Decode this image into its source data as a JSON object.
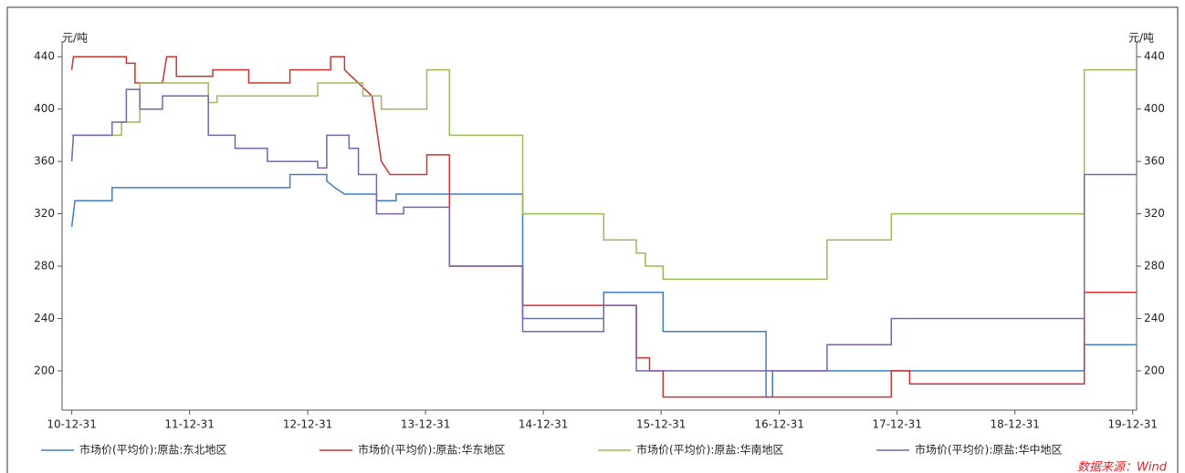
{
  "chart_data": {
    "type": "line",
    "y_label": "元/吨",
    "y2_label": "元/吨",
    "source": "数据来源：Wind",
    "xlim": [
      "10-12-01",
      "20-01-12"
    ],
    "xticks": [
      "10-12-31",
      "11-12-31",
      "12-12-31",
      "13-12-31",
      "14-12-31",
      "15-12-31",
      "16-12-31",
      "17-12-31",
      "18-12-31",
      "19-12-31"
    ],
    "ylim": [
      170,
      452
    ],
    "yticks": [
      200,
      240,
      280,
      320,
      360,
      400,
      440
    ],
    "series": [
      {
        "name": "市场价(平均价):原盐:东北地区",
        "color": "#3f7cc6",
        "x": [
          "10-12-31",
          "11-01-10",
          "11-05-05",
          "11-05-05",
          "12-11-06",
          "12-11-06",
          "13-02-28",
          "13-02-28",
          "13-03-25",
          "13-04-24",
          "13-08-01",
          "13-08-01",
          "13-10-01",
          "13-10-01",
          "14-10-28",
          "14-10-28",
          "15-07-06",
          "15-07-06",
          "16-01-06",
          "16-01-06",
          "16-11-20",
          "16-11-20",
          "16-12-10",
          "16-12-10",
          "19-08-03",
          "19-08-03",
          "20-01-12"
        ],
        "values": [
          310,
          330,
          330,
          340,
          340,
          350,
          350,
          345,
          340,
          335,
          335,
          330,
          330,
          335,
          335,
          240,
          240,
          260,
          260,
          230,
          230,
          180,
          180,
          200,
          200,
          220,
          220
        ]
      },
      {
        "name": "市场价(平均价):原盐:华东地区",
        "color": "#cc3431",
        "x": [
          "10-12-31",
          "11-01-05",
          "11-06-18",
          "11-06-18",
          "11-07-15",
          "11-07-15",
          "11-10-08",
          "11-10-21",
          "11-11-20",
          "11-11-20",
          "12-03-12",
          "12-03-12",
          "12-07-01",
          "12-07-01",
          "12-11-06",
          "12-11-06",
          "13-03-12",
          "13-03-12",
          "13-04-24",
          "13-04-24",
          "13-07-18",
          "13-08-16",
          "13-09-12",
          "13-09-12",
          "14-01-04",
          "14-01-04",
          "14-03-15",
          "14-03-15",
          "14-10-28",
          "14-10-28",
          "15-10-15",
          "15-10-15",
          "15-11-25",
          "15-11-25",
          "16-01-06",
          "16-01-06",
          "17-12-13",
          "17-12-13",
          "18-02-08",
          "18-02-08",
          "19-08-03",
          "19-08-03",
          "20-01-12"
        ],
        "values": [
          430,
          440,
          440,
          435,
          435,
          420,
          420,
          440,
          440,
          425,
          425,
          430,
          430,
          420,
          420,
          430,
          430,
          440,
          440,
          430,
          410,
          360,
          350,
          350,
          350,
          365,
          365,
          280,
          280,
          250,
          250,
          210,
          210,
          200,
          200,
          180,
          180,
          200,
          200,
          190,
          190,
          260,
          260
        ]
      },
      {
        "name": "市场价(平均价):原盐:华南地区",
        "color": "#9bbb59",
        "x": [
          "10-12-31",
          "11-06-03",
          "11-06-03",
          "11-07-30",
          "11-07-30",
          "12-02-27",
          "12-02-27",
          "12-03-25",
          "12-03-25",
          "13-01-31",
          "13-01-31",
          "13-06-20",
          "13-06-20",
          "13-08-16",
          "13-08-16",
          "14-01-04",
          "14-01-04",
          "14-03-15",
          "14-03-15",
          "14-10-28",
          "14-10-28",
          "15-07-06",
          "15-07-06",
          "15-10-15",
          "15-10-15",
          "15-11-12",
          "15-11-12",
          "16-01-06",
          "16-01-06",
          "17-05-28",
          "17-05-28",
          "17-12-13",
          "17-12-13",
          "19-08-03",
          "19-08-03",
          "20-01-12"
        ],
        "values": [
          380,
          380,
          390,
          390,
          420,
          420,
          405,
          405,
          410,
          410,
          420,
          420,
          410,
          410,
          400,
          400,
          430,
          430,
          380,
          380,
          320,
          320,
          300,
          300,
          290,
          290,
          280,
          280,
          270,
          270,
          300,
          300,
          320,
          320,
          430,
          430
        ]
      },
      {
        "name": "市场价(平均价):原盐:华中地区",
        "color": "#7b62aa",
        "x": [
          "10-12-31",
          "11-01-05",
          "11-05-05",
          "11-05-05",
          "11-06-18",
          "11-06-18",
          "11-07-30",
          "11-07-30",
          "11-10-08",
          "11-10-08",
          "12-02-27",
          "12-02-27",
          "12-05-20",
          "12-05-20",
          "12-08-28",
          "12-08-28",
          "13-01-31",
          "13-01-31",
          "13-02-28",
          "13-02-28",
          "13-05-08",
          "13-05-08",
          "13-06-06",
          "13-06-06",
          "13-08-01",
          "13-08-01",
          "13-10-24",
          "13-10-24",
          "14-03-15",
          "14-03-15",
          "14-10-28",
          "14-10-28",
          "15-07-06",
          "15-07-06",
          "15-10-15",
          "15-10-15",
          "17-05-28",
          "17-05-28",
          "17-12-13",
          "17-12-13",
          "19-08-03",
          "19-08-03",
          "20-01-12"
        ],
        "values": [
          360,
          380,
          380,
          390,
          390,
          415,
          415,
          400,
          400,
          410,
          410,
          380,
          380,
          370,
          370,
          360,
          360,
          355,
          355,
          380,
          380,
          370,
          370,
          350,
          350,
          320,
          320,
          325,
          325,
          280,
          280,
          230,
          230,
          250,
          250,
          200,
          200,
          220,
          220,
          240,
          240,
          350,
          350
        ]
      }
    ]
  }
}
